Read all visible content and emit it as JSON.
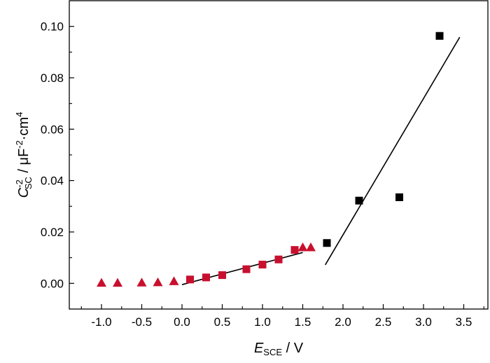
{
  "chart_data": {
    "type": "scatter",
    "title": "",
    "xlabel": {
      "main": "E",
      "sub": "SCE",
      "rest": " / V"
    },
    "ylabel": {
      "main": "C",
      "sup1": "-2",
      "sub": "SC",
      "mid": " / μF",
      "sup2": "-2",
      "rest": "·cm",
      "sup3": "4"
    },
    "xlim": [
      -1.4,
      3.8
    ],
    "ylim": [
      -0.01,
      0.11
    ],
    "xticks": [
      -1.0,
      -0.5,
      0.0,
      0.5,
      1.0,
      1.5,
      2.0,
      2.5,
      3.0,
      3.5
    ],
    "xtick_labels": [
      "-1.0",
      "-0.5",
      "0.0",
      "0.5",
      "1.0",
      "1.5",
      "2.0",
      "2.5",
      "3.0",
      "3.5"
    ],
    "yticks": [
      0.0,
      0.02,
      0.04,
      0.06,
      0.08,
      0.1
    ],
    "ytick_labels": [
      "0.00",
      "0.02",
      "0.04",
      "0.06",
      "0.08",
      "0.10"
    ],
    "grid": false,
    "series": [
      {
        "marker": "triangle",
        "color": "#c8102e",
        "x": [
          -1.0,
          -0.8,
          -0.5,
          -0.3,
          -0.1,
          1.5,
          1.6
        ],
        "y": [
          0.0002,
          0.0002,
          0.0003,
          0.0004,
          0.0008,
          0.014,
          0.014
        ]
      },
      {
        "marker": "square",
        "color": "#c8102e",
        "x": [
          0.1,
          0.3,
          0.5,
          0.8,
          1.0,
          1.2,
          1.4
        ],
        "y": [
          0.0015,
          0.0023,
          0.0032,
          0.0055,
          0.0073,
          0.0093,
          0.013
        ]
      },
      {
        "marker": "square",
        "color": "#000000",
        "x": [
          1.8,
          2.2,
          2.7,
          3.2
        ],
        "y": [
          0.0157,
          0.0322,
          0.0335,
          0.0963
        ]
      }
    ],
    "fit_lines": [
      {
        "color": "#000000",
        "x": [
          0.0,
          1.5
        ],
        "y": [
          -0.0005,
          0.012
        ]
      },
      {
        "color": "#000000",
        "x": [
          1.78,
          3.45
        ],
        "y": [
          0.0072,
          0.0958
        ]
      }
    ]
  }
}
